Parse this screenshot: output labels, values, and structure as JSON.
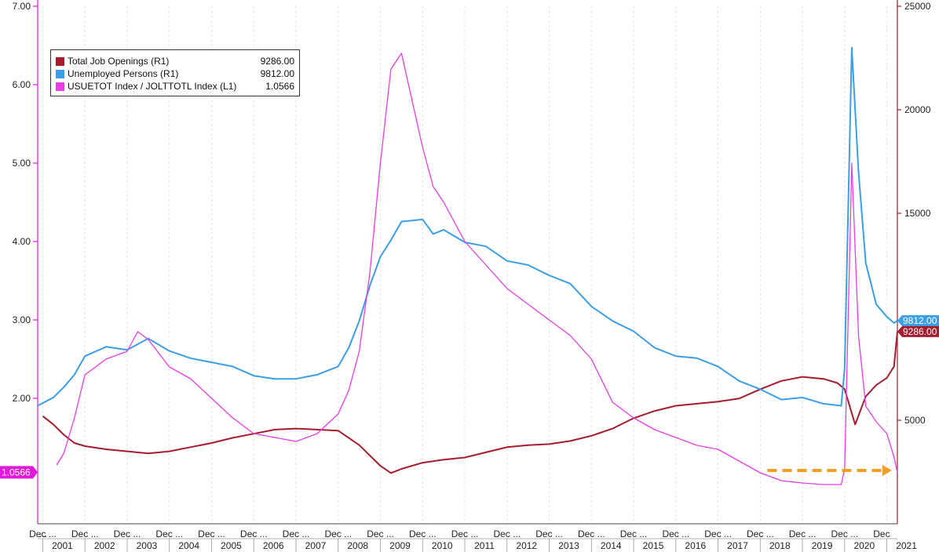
{
  "colors": {
    "job_openings": "#a61c2f",
    "unemployed": "#3b9ee8",
    "ratio": "#e83ce6",
    "axis_left": "#e01ad8",
    "axis_right": "#a61c2f",
    "arrow": "#f0a020"
  },
  "legend": {
    "items": [
      {
        "label": "Total Job Openings (R1)",
        "value": "9286.00"
      },
      {
        "label": "Unemployed Persons (R1)",
        "value": "9812.00"
      },
      {
        "label": "USUETOT Index / JOLTTOTL Index (L1)",
        "value": "1.0566"
      }
    ]
  },
  "badges": {
    "unemployed": "9812.00",
    "job_openings": "9286.00",
    "ratio": "1.0566"
  },
  "chart_data": {
    "type": "line",
    "title": "",
    "x_range": [
      2000.88,
      2021.25
    ],
    "left_axis": {
      "ylim": [
        0.4,
        7.0
      ],
      "ticks": [
        "7.00",
        "6.00",
        "5.00",
        "4.00",
        "3.00",
        "2.00"
      ],
      "tick_values": [
        7,
        6,
        5,
        4,
        3,
        2
      ]
    },
    "right_axis": {
      "ylim": [
        0,
        25000
      ],
      "ticks": [
        "25000",
        "20000",
        "15000",
        "5000"
      ],
      "tick_values": [
        25000,
        20000,
        15000,
        5000
      ]
    },
    "x_ticks": {
      "month_labels": [
        "...",
        "Dec",
        "Dec",
        "Dec",
        "Dec",
        "Dec",
        "Dec",
        "Dec",
        "Dec",
        "Dec",
        "Dec",
        "Dec",
        "Dec",
        "Dec",
        "Dec",
        "Dec",
        "Dec",
        "Dec",
        "Dec",
        "Dec",
        "Dec",
        "Dec"
      ],
      "month_label_suffix": [
        "",
        "...",
        "...",
        "...",
        "...",
        "...",
        "...",
        "...",
        "...",
        "...",
        "...",
        "...",
        "...",
        "...",
        "...",
        "...",
        "...",
        "...",
        "...",
        "...",
        "...",
        ""
      ],
      "years": [
        "2001",
        "2002",
        "2003",
        "2004",
        "2005",
        "2006",
        "2007",
        "2008",
        "2009",
        "2010",
        "2011",
        "2012",
        "2013",
        "2014",
        "2015",
        "2016",
        "2017",
        "2018",
        "2019",
        "2020",
        "2021"
      ]
    },
    "series": [
      {
        "name": "Total Job Openings (R1)",
        "axis": "right",
        "x": [
          2001.0,
          2001.25,
          2001.5,
          2001.75,
          2002.0,
          2002.5,
          2003.0,
          2003.5,
          2004.0,
          2004.5,
          2005.0,
          2005.5,
          2006.0,
          2006.5,
          2007.0,
          2007.5,
          2008.0,
          2008.5,
          2009.0,
          2009.25,
          2009.5,
          2010.0,
          2010.5,
          2011.0,
          2011.5,
          2012.0,
          2012.5,
          2013.0,
          2013.5,
          2014.0,
          2014.5,
          2015.0,
          2015.5,
          2016.0,
          2016.5,
          2017.0,
          2017.5,
          2018.0,
          2018.5,
          2019.0,
          2019.5,
          2019.83,
          2020.0,
          2020.25,
          2020.5,
          2020.75,
          2021.0,
          2021.17,
          2021.25
        ],
        "values": [
          5200,
          4800,
          4300,
          3900,
          3750,
          3600,
          3500,
          3400,
          3500,
          3700,
          3900,
          4150,
          4350,
          4550,
          4600,
          4550,
          4500,
          3800,
          2800,
          2450,
          2650,
          2950,
          3100,
          3200,
          3450,
          3700,
          3800,
          3850,
          4000,
          4250,
          4600,
          5100,
          5450,
          5700,
          5800,
          5900,
          6050,
          6500,
          6900,
          7100,
          7000,
          6800,
          6500,
          4800,
          6150,
          6700,
          7050,
          7600,
          9286
        ]
      },
      {
        "name": "Unemployed Persons (R1)",
        "axis": "right",
        "x": [
          2000.88,
          2001.25,
          2001.5,
          2001.75,
          2002.0,
          2002.5,
          2003.0,
          2003.5,
          2004.0,
          2004.5,
          2005.0,
          2005.5,
          2006.0,
          2006.5,
          2007.0,
          2007.5,
          2008.0,
          2008.25,
          2008.5,
          2008.75,
          2009.0,
          2009.25,
          2009.5,
          2010.0,
          2010.25,
          2010.5,
          2011.0,
          2011.5,
          2012.0,
          2012.5,
          2013.0,
          2013.5,
          2014.0,
          2014.5,
          2015.0,
          2015.5,
          2016.0,
          2016.5,
          2017.0,
          2017.5,
          2018.0,
          2018.5,
          2019.0,
          2019.5,
          2019.92,
          2020.0,
          2020.17,
          2020.33,
          2020.5,
          2020.75,
          2021.0,
          2021.17,
          2021.25
        ],
        "values": [
          5700,
          6100,
          6600,
          7200,
          8100,
          8550,
          8400,
          8950,
          8350,
          8000,
          7800,
          7600,
          7150,
          7000,
          7000,
          7200,
          7600,
          8500,
          9800,
          11500,
          12900,
          13700,
          14600,
          14700,
          14000,
          14200,
          13600,
          13400,
          12700,
          12500,
          12000,
          11600,
          10500,
          9800,
          9300,
          8500,
          8100,
          8000,
          7600,
          6900,
          6500,
          6000,
          6100,
          5800,
          5700,
          7500,
          23000,
          17000,
          12600,
          10600,
          10000,
          9700,
          9812
        ]
      },
      {
        "name": "USUETOT Index / JOLTTOTL Index (L1)",
        "axis": "left",
        "x": [
          2001.33,
          2001.5,
          2001.75,
          2002.0,
          2002.5,
          2003.0,
          2003.25,
          2003.5,
          2004.0,
          2004.5,
          2005.0,
          2005.5,
          2006.0,
          2006.5,
          2007.0,
          2007.5,
          2008.0,
          2008.25,
          2008.5,
          2008.75,
          2009.0,
          2009.25,
          2009.5,
          2009.75,
          2010.0,
          2010.25,
          2010.5,
          2011.0,
          2011.5,
          2012.0,
          2012.5,
          2013.0,
          2013.5,
          2014.0,
          2014.5,
          2015.0,
          2015.5,
          2016.0,
          2016.5,
          2017.0,
          2017.5,
          2018.0,
          2018.5,
          2019.0,
          2019.5,
          2019.92,
          2020.0,
          2020.17,
          2020.33,
          2020.5,
          2020.75,
          2021.0,
          2021.17,
          2021.25
        ],
        "values": [
          1.15,
          1.3,
          1.75,
          2.3,
          2.5,
          2.6,
          2.85,
          2.75,
          2.4,
          2.25,
          2.0,
          1.75,
          1.55,
          1.5,
          1.45,
          1.55,
          1.8,
          2.1,
          2.6,
          3.6,
          5.0,
          6.2,
          6.4,
          5.8,
          5.2,
          4.7,
          4.5,
          4.0,
          3.7,
          3.4,
          3.2,
          3.0,
          2.8,
          2.5,
          1.95,
          1.75,
          1.6,
          1.5,
          1.4,
          1.35,
          1.2,
          1.05,
          0.95,
          0.92,
          0.9,
          0.9,
          1.1,
          5.0,
          2.8,
          1.9,
          1.7,
          1.55,
          1.25,
          1.0566
        ]
      }
    ],
    "annotation": {
      "type": "arrow",
      "x0": 2018.17,
      "x1": 2021.08,
      "axis": "left",
      "y": 1.08
    }
  }
}
